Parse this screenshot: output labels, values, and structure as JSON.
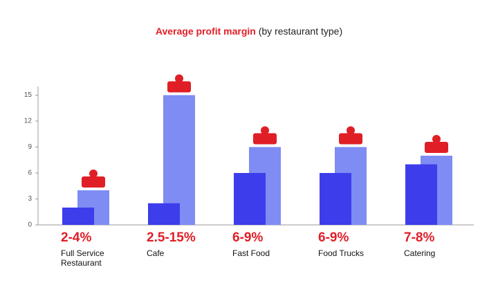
{
  "chart_data": {
    "type": "bar",
    "title": "Average profit margin",
    "subtitle": "(by restaurant type)",
    "categories": [
      "Full Service Restaurant",
      "Cafe",
      "Fast Food",
      "Food Trucks",
      "Catering"
    ],
    "range_labels": [
      "2-4%",
      "2.5-15%",
      "6-9%",
      "6-9%",
      "7-8%"
    ],
    "series": [
      {
        "color": "#3d3deb",
        "values": [
          2,
          2.5,
          6,
          6,
          7
        ]
      },
      {
        "color": "#7f8cf3",
        "values": [
          4,
          15,
          9,
          9,
          8
        ]
      }
    ],
    "accent_color": "#e01e26",
    "ylim": [
      0,
      16
    ],
    "yticks": [
      0,
      3,
      6,
      9,
      12,
      15
    ]
  }
}
